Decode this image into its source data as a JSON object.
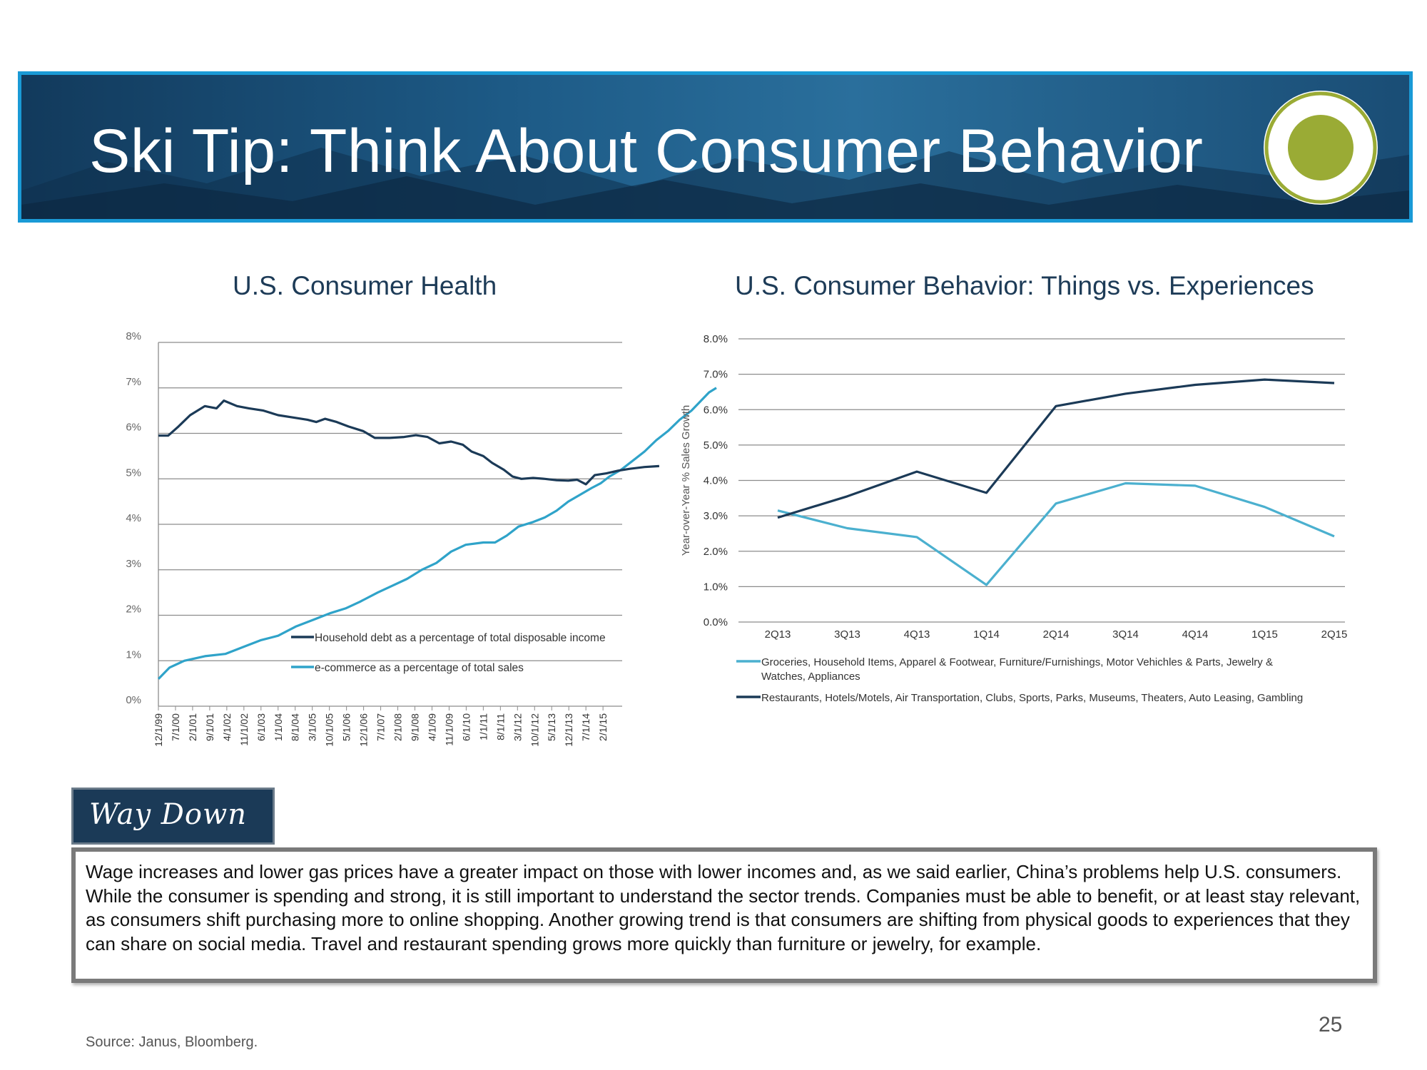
{
  "banner": {
    "title": "Ski Tip: Think About Consumer Behavior"
  },
  "colors": {
    "banner_blue": "#1d5a86",
    "banner_border": "#1a9ad6",
    "logo_green": "#9aab35",
    "dark_series": "#1b3a57",
    "light_series": "#2fa3c9"
  },
  "chart_data": [
    {
      "type": "line",
      "title": "U.S. Consumer Health",
      "ylim": [
        0,
        8
      ],
      "y_ticks": [
        "0%",
        "1%",
        "2%",
        "3%",
        "4%",
        "5%",
        "6%",
        "7%",
        "8%"
      ],
      "x_ticks": [
        "12/1/99",
        "7/1/00",
        "2/1/01",
        "9/1/01",
        "4/1/02",
        "11/1/02",
        "6/1/03",
        "1/1/04",
        "8/1/04",
        "3/1/05",
        "10/1/05",
        "5/1/06",
        "12/1/06",
        "7/1/07",
        "2/1/08",
        "9/1/08",
        "4/1/09",
        "11/1/09",
        "6/1/10",
        "1/1/11",
        "8/1/11",
        "3/1/12",
        "10/1/12",
        "5/1/13",
        "12/1/13",
        "7/1/14",
        "2/1/15"
      ],
      "x_range": [
        "12/1/99",
        "7/1/15"
      ],
      "grid": true,
      "legend_position": "bottom-right",
      "series": [
        {
          "name": "Household debt as a percentage of total disposable income",
          "color": "#1b3a57",
          "points": [
            [
              1999.92,
              5.95
            ],
            [
              2000.25,
              5.95
            ],
            [
              2000.6,
              6.15
            ],
            [
              2001.0,
              6.4
            ],
            [
              2001.5,
              6.6
            ],
            [
              2001.9,
              6.55
            ],
            [
              2002.15,
              6.72
            ],
            [
              2002.6,
              6.6
            ],
            [
              2003.0,
              6.55
            ],
            [
              2003.5,
              6.5
            ],
            [
              2004.0,
              6.4
            ],
            [
              2004.5,
              6.35
            ],
            [
              2005.0,
              6.3
            ],
            [
              2005.3,
              6.25
            ],
            [
              2005.6,
              6.32
            ],
            [
              2006.0,
              6.25
            ],
            [
              2006.4,
              6.15
            ],
            [
              2006.9,
              6.05
            ],
            [
              2007.3,
              5.9
            ],
            [
              2007.8,
              5.9
            ],
            [
              2008.3,
              5.92
            ],
            [
              2008.7,
              5.96
            ],
            [
              2009.1,
              5.92
            ],
            [
              2009.5,
              5.78
            ],
            [
              2009.9,
              5.82
            ],
            [
              2010.3,
              5.75
            ],
            [
              2010.6,
              5.6
            ],
            [
              2011.0,
              5.5
            ],
            [
              2011.3,
              5.35
            ],
            [
              2011.7,
              5.2
            ],
            [
              2012.0,
              5.05
            ],
            [
              2012.3,
              5.0
            ],
            [
              2012.7,
              5.02
            ],
            [
              2013.1,
              5.0
            ],
            [
              2013.5,
              4.97
            ],
            [
              2013.9,
              4.96
            ],
            [
              2014.2,
              4.98
            ],
            [
              2014.5,
              4.88
            ],
            [
              2014.8,
              5.08
            ],
            [
              2015.2,
              5.12
            ],
            [
              2015.6,
              5.18
            ],
            [
              2016.0,
              5.22
            ],
            [
              2016.5,
              5.26
            ],
            [
              2017.0,
              5.28
            ]
          ]
        },
        {
          "name": "e-commerce as a percentage of total sales",
          "color": "#2fa3c9",
          "points": [
            [
              1999.92,
              0.6
            ],
            [
              2000.3,
              0.85
            ],
            [
              2000.8,
              1.0
            ],
            [
              2001.5,
              1.1
            ],
            [
              2002.2,
              1.15
            ],
            [
              2002.8,
              1.3
            ],
            [
              2003.4,
              1.45
            ],
            [
              2004.0,
              1.55
            ],
            [
              2004.6,
              1.75
            ],
            [
              2005.2,
              1.9
            ],
            [
              2005.8,
              2.05
            ],
            [
              2006.3,
              2.15
            ],
            [
              2006.8,
              2.3
            ],
            [
              2007.4,
              2.5
            ],
            [
              2007.9,
              2.65
            ],
            [
              2008.4,
              2.8
            ],
            [
              2008.9,
              3.0
            ],
            [
              2009.4,
              3.15
            ],
            [
              2009.9,
              3.4
            ],
            [
              2010.4,
              3.55
            ],
            [
              2011.0,
              3.6
            ],
            [
              2011.4,
              3.6
            ],
            [
              2011.8,
              3.75
            ],
            [
              2012.2,
              3.95
            ],
            [
              2012.7,
              4.05
            ],
            [
              2013.1,
              4.15
            ],
            [
              2013.5,
              4.3
            ],
            [
              2013.9,
              4.5
            ],
            [
              2014.3,
              4.65
            ],
            [
              2014.7,
              4.8
            ],
            [
              2015.0,
              4.9
            ],
            [
              2015.3,
              5.05
            ],
            [
              2015.7,
              5.2
            ],
            [
              2016.1,
              5.4
            ],
            [
              2016.5,
              5.6
            ],
            [
              2016.9,
              5.85
            ],
            [
              2017.3,
              6.05
            ],
            [
              2017.7,
              6.3
            ],
            [
              2018.1,
              6.5
            ],
            [
              2018.4,
              6.7
            ],
            [
              2018.7,
              6.9
            ],
            [
              2018.95,
              7.0
            ]
          ]
        }
      ]
    },
    {
      "type": "line",
      "title": "U.S. Consumer Behavior: Things vs. Experiences",
      "ylabel": "Year-over-Year % Sales Growth",
      "ylim": [
        0,
        8
      ],
      "y_ticks": [
        "0.0%",
        "1.0%",
        "2.0%",
        "3.0%",
        "4.0%",
        "5.0%",
        "6.0%",
        "7.0%",
        "8.0%"
      ],
      "categories": [
        "2Q13",
        "3Q13",
        "4Q13",
        "1Q14",
        "2Q14",
        "3Q14",
        "4Q14",
        "1Q15",
        "2Q15"
      ],
      "grid": true,
      "legend_position": "bottom",
      "series": [
        {
          "name": "Groceries, Household Items, Apparel & Footwear, Furniture/Furnishings, Motor Vehichles & Parts, Jewelry & Watches, Appliances",
          "legend_lines": [
            "Groceries,  Household Items, Apparel & Footwear,  Furniture/Furnishings,  Motor Vehichles & Parts,  Jewelry &",
            "Watches,  Appliances"
          ],
          "color": "#4bb0cf",
          "values": [
            3.15,
            2.65,
            2.4,
            1.05,
            3.35,
            3.92,
            3.85,
            3.25,
            2.42
          ]
        },
        {
          "name": "Restaurants, Hotels/Motels, Air Transportation, Clubs, Sports, Parks, Museums, Theaters, Auto Leasing, Gambling",
          "legend_lines": [
            "Restaurants,  Hotels/Motels,  Air Transportation,  Clubs, Sports, Parks, Museums, Theaters, Auto Leasing,  Gambling"
          ],
          "color": "#1b3a57",
          "values": [
            2.95,
            3.55,
            4.25,
            3.65,
            6.1,
            6.45,
            6.7,
            6.85,
            6.75
          ]
        }
      ]
    }
  ],
  "callout": {
    "label": "Way Down",
    "text": "Wage increases and lower gas prices have a greater impact on those with lower incomes and, as we said earlier, China’s problems help U.S. consumers. While the consumer is spending and strong, it is still important to understand the sector trends. Companies must be able to benefit, or at least stay relevant, as consumers shift purchasing more to online shopping. Another growing trend is that consumers are shifting from physical goods to experiences that they can share on social media. Travel and restaurant spending grows more quickly than furniture or jewelry, for example."
  },
  "page_number": "25",
  "source": "Source: Janus, Bloomberg."
}
